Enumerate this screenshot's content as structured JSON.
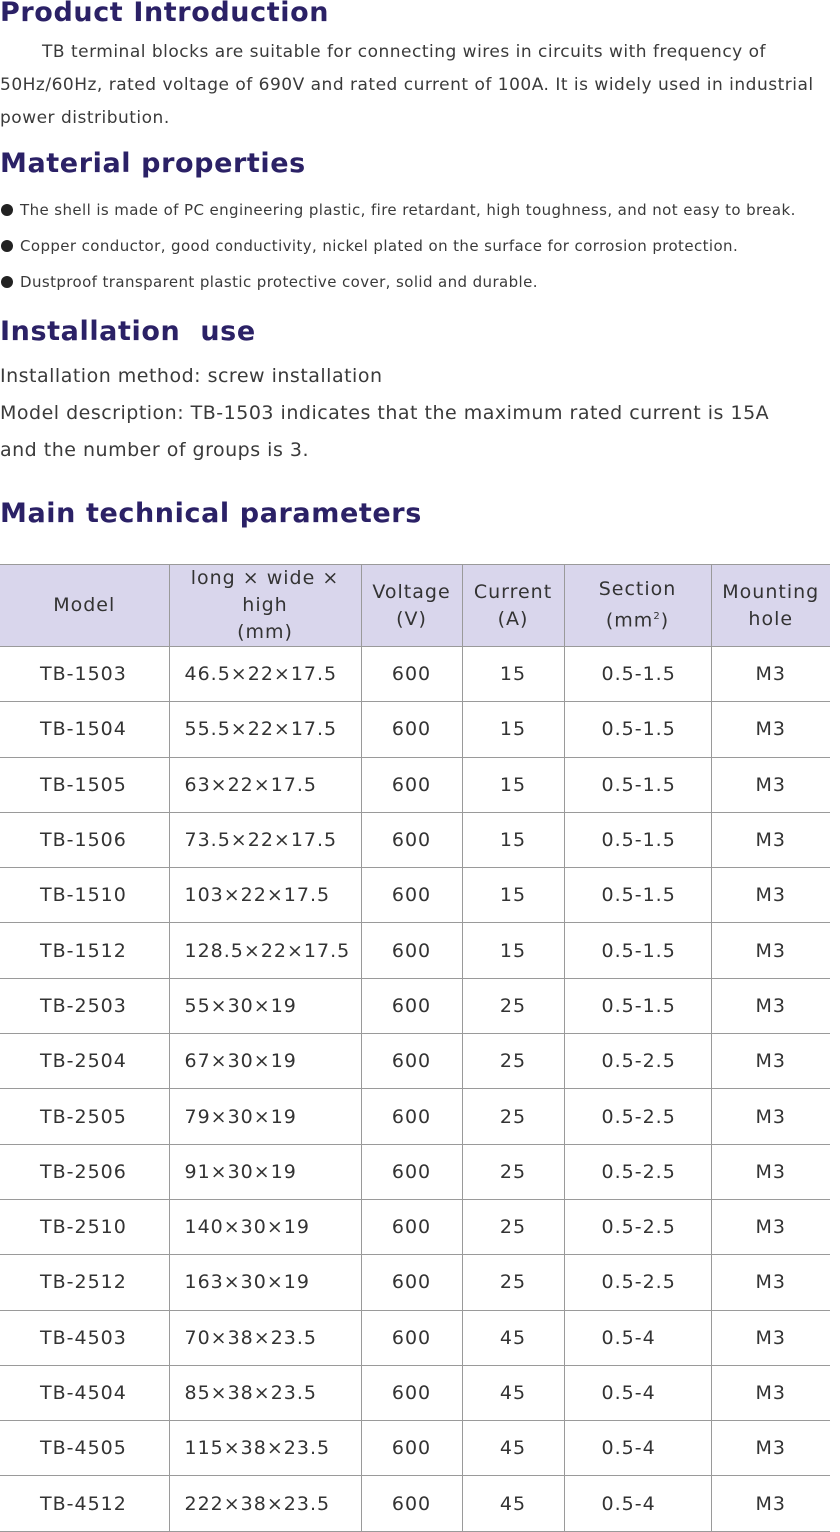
{
  "intro": {
    "heading": "Product Introduction",
    "text": "TB terminal blocks are suitable for connecting wires in circuits with frequency of 50Hz/60Hz, rated voltage of 690V and rated current of 100A. It is widely used in industrial power distribution."
  },
  "material": {
    "heading": "Material properties",
    "items": [
      "The shell is made of PC engineering plastic, fire retardant, high toughness, and not easy to break.",
      "Copper conductor, good conductivity, nickel plated on the surface for corrosion protection.",
      "Dustproof transparent plastic protective cover, solid and durable."
    ]
  },
  "installation": {
    "heading": "Installation  use",
    "method": "Installation method: screw installation",
    "model_desc_1": "Model description: TB-1503 indicates that the maximum rated current is 15A",
    "model_desc_2": "and the number of groups is 3."
  },
  "params": {
    "heading": "Main technical parameters",
    "headers": {
      "model": "Model",
      "dims_1": "long × wide × high",
      "dims_2": "(mm)",
      "voltage_1": "Voltage",
      "voltage_2": "(V)",
      "current_1": "Current",
      "current_2": "(A)",
      "section_1": "Section",
      "section_2a": "(mm",
      "section_sup": "2",
      "section_2b": ")",
      "mount_1": "Mounting",
      "mount_2": "hole"
    },
    "rows": [
      {
        "model": "TB-1503",
        "dims": "46.5×22×17.5",
        "voltage": "600",
        "current": "15",
        "section": "0.5-1.5",
        "hole": "M3"
      },
      {
        "model": "TB-1504",
        "dims": "55.5×22×17.5",
        "voltage": "600",
        "current": "15",
        "section": "0.5-1.5",
        "hole": "M3"
      },
      {
        "model": "TB-1505",
        "dims": "63×22×17.5",
        "voltage": "600",
        "current": "15",
        "section": "0.5-1.5",
        "hole": "M3"
      },
      {
        "model": "TB-1506",
        "dims": "73.5×22×17.5",
        "voltage": "600",
        "current": "15",
        "section": "0.5-1.5",
        "hole": "M3"
      },
      {
        "model": "TB-1510",
        "dims": "103×22×17.5",
        "voltage": "600",
        "current": "15",
        "section": "0.5-1.5",
        "hole": "M3"
      },
      {
        "model": "TB-1512",
        "dims": "128.5×22×17.5",
        "voltage": "600",
        "current": "15",
        "section": "0.5-1.5",
        "hole": "M3"
      },
      {
        "model": "TB-2503",
        "dims": "55×30×19",
        "voltage": "600",
        "current": "25",
        "section": "0.5-1.5",
        "hole": "M3"
      },
      {
        "model": "TB-2504",
        "dims": "67×30×19",
        "voltage": "600",
        "current": "25",
        "section": "0.5-2.5",
        "hole": "M3"
      },
      {
        "model": "TB-2505",
        "dims": "79×30×19",
        "voltage": "600",
        "current": "25",
        "section": "0.5-2.5",
        "hole": "M3"
      },
      {
        "model": "TB-2506",
        "dims": "91×30×19",
        "voltage": "600",
        "current": "25",
        "section": "0.5-2.5",
        "hole": "M3"
      },
      {
        "model": "TB-2510",
        "dims": "140×30×19",
        "voltage": "600",
        "current": "25",
        "section": "0.5-2.5",
        "hole": "M3"
      },
      {
        "model": "TB-2512",
        "dims": "163×30×19",
        "voltage": "600",
        "current": "25",
        "section": "0.5-2.5",
        "hole": "M3"
      },
      {
        "model": "TB-4503",
        "dims": "70×38×23.5",
        "voltage": "600",
        "current": "45",
        "section": "0.5-4",
        "hole": "M3"
      },
      {
        "model": "TB-4504",
        "dims": "85×38×23.5",
        "voltage": "600",
        "current": "45",
        "section": "0.5-4",
        "hole": "M3"
      },
      {
        "model": "TB-4505",
        "dims": "115×38×23.5",
        "voltage": "600",
        "current": "45",
        "section": "0.5-4",
        "hole": "M3"
      },
      {
        "model": "TB-4512",
        "dims": "222×38×23.5",
        "voltage": "600",
        "current": "45",
        "section": "0.5-4",
        "hole": "M3"
      }
    ]
  }
}
